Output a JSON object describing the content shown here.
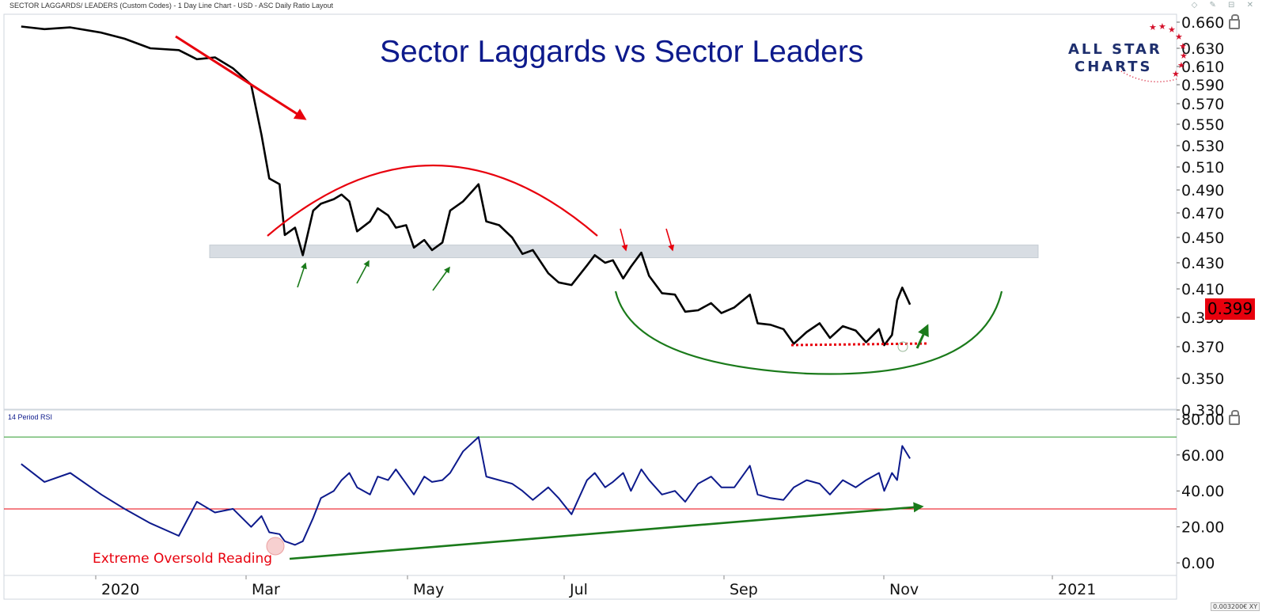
{
  "header": {
    "text": "SECTOR LAGGARDS/ LEADERS (Custom Codes) - 1 Day Line Chart - USD - ASC Daily Ratio Layout",
    "window_controls": "◇ ✎ ⊟ ✕"
  },
  "logo": {
    "line1": "ALL STAR",
    "line2": "CHARTS"
  },
  "price_tag": {
    "value": "0.399",
    "color": "#e8000d"
  },
  "corner_tag": "0.003200€ XY",
  "colors": {
    "price_line": "#000000",
    "rsi_line": "#0d1a8c",
    "title": "#0d1a8c",
    "red": "#e8000d",
    "green": "#1a7a1a",
    "band": "#d8dde3",
    "grid_border": "#cfd6dc"
  },
  "chart_data": [
    {
      "type": "line",
      "title": "Sector Laggards vs Sector Leaders",
      "y_axis_side": "right",
      "yticks": [
        "0.660",
        "0.630",
        "0.610",
        "0.590",
        "0.570",
        "0.550",
        "0.530",
        "0.510",
        "0.490",
        "0.470",
        "0.450",
        "0.430",
        "0.410",
        "0.390",
        "0.370",
        "0.350",
        "0.330"
      ],
      "x_tick_labels": [
        "2020",
        "Mar",
        "May",
        "Jul",
        "Sep",
        "Nov",
        "2021"
      ],
      "last_value": 0.399,
      "support_band": [
        0.434,
        0.444
      ],
      "series": [
        {
          "color": "#000000",
          "x": [
            "2019-12-01",
            "2019-12-10",
            "2019-12-20",
            "2020-01-01",
            "2020-01-10",
            "2020-01-20",
            "2020-01-31",
            "2020-02-07",
            "2020-02-14",
            "2020-02-21",
            "2020-02-28",
            "2020-03-03",
            "2020-03-06",
            "2020-03-10",
            "2020-03-12",
            "2020-03-16",
            "2020-03-19",
            "2020-03-23",
            "2020-03-26",
            "2020-03-31",
            "2020-04-03",
            "2020-04-06",
            "2020-04-09",
            "2020-04-14",
            "2020-04-17",
            "2020-04-21",
            "2020-04-24",
            "2020-04-28",
            "2020-05-01",
            "2020-05-05",
            "2020-05-08",
            "2020-05-12",
            "2020-05-15",
            "2020-05-20",
            "2020-05-26",
            "2020-05-29",
            "2020-06-03",
            "2020-06-08",
            "2020-06-12",
            "2020-06-16",
            "2020-06-22",
            "2020-06-26",
            "2020-07-01",
            "2020-07-07",
            "2020-07-10",
            "2020-07-14",
            "2020-07-17",
            "2020-07-21",
            "2020-07-24",
            "2020-07-28",
            "2020-07-31",
            "2020-08-05",
            "2020-08-10",
            "2020-08-14",
            "2020-08-19",
            "2020-08-24",
            "2020-08-28",
            "2020-09-02",
            "2020-09-08",
            "2020-09-11",
            "2020-09-16",
            "2020-09-21",
            "2020-09-25",
            "2020-09-30",
            "2020-10-05",
            "2020-10-09",
            "2020-10-14",
            "2020-10-19",
            "2020-10-23",
            "2020-10-28",
            "2020-10-30",
            "2020-11-02",
            "2020-11-04",
            "2020-11-06",
            "2020-11-09"
          ],
          "y": [
            0.655,
            0.652,
            0.654,
            0.648,
            0.641,
            0.63,
            0.628,
            0.618,
            0.62,
            0.608,
            0.59,
            0.54,
            0.5,
            0.495,
            0.452,
            0.458,
            0.436,
            0.472,
            0.478,
            0.482,
            0.486,
            0.48,
            0.455,
            0.463,
            0.474,
            0.468,
            0.458,
            0.46,
            0.442,
            0.448,
            0.44,
            0.446,
            0.472,
            0.48,
            0.495,
            0.463,
            0.46,
            0.45,
            0.437,
            0.44,
            0.422,
            0.415,
            0.413,
            0.428,
            0.436,
            0.43,
            0.432,
            0.418,
            0.427,
            0.438,
            0.42,
            0.407,
            0.406,
            0.394,
            0.395,
            0.4,
            0.393,
            0.397,
            0.406,
            0.386,
            0.385,
            0.382,
            0.372,
            0.38,
            0.386,
            0.376,
            0.384,
            0.381,
            0.373,
            0.382,
            0.371,
            0.378,
            0.402,
            0.411,
            0.399
          ]
        }
      ],
      "annotations": [
        {
          "type": "arrow",
          "color": "red",
          "label": "",
          "desc": "downtrend arrow"
        },
        {
          "type": "arc",
          "color": "red",
          "desc": "topping arc"
        },
        {
          "type": "arc",
          "color": "green",
          "desc": "basing arc"
        },
        {
          "type": "dotted-line",
          "color": "red",
          "desc": "support at lows"
        }
      ]
    },
    {
      "type": "line",
      "title": "14 Period RSI",
      "y_axis_side": "right",
      "yticks": [
        "80.00",
        "60.00",
        "40.00",
        "20.00",
        "0.00"
      ],
      "ylim": [
        -7,
        85
      ],
      "overbought": 70,
      "oversold": 30,
      "series": [
        {
          "color": "#0d1a8c",
          "x": [
            "2019-12-01",
            "2019-12-10",
            "2019-12-20",
            "2020-01-01",
            "2020-01-10",
            "2020-01-20",
            "2020-01-31",
            "2020-02-07",
            "2020-02-14",
            "2020-02-21",
            "2020-02-28",
            "2020-03-03",
            "2020-03-06",
            "2020-03-10",
            "2020-03-12",
            "2020-03-16",
            "2020-03-19",
            "2020-03-23",
            "2020-03-26",
            "2020-03-31",
            "2020-04-03",
            "2020-04-06",
            "2020-04-09",
            "2020-04-14",
            "2020-04-17",
            "2020-04-21",
            "2020-04-24",
            "2020-04-28",
            "2020-05-01",
            "2020-05-05",
            "2020-05-08",
            "2020-05-12",
            "2020-05-15",
            "2020-05-20",
            "2020-05-26",
            "2020-05-29",
            "2020-06-03",
            "2020-06-08",
            "2020-06-12",
            "2020-06-16",
            "2020-06-22",
            "2020-06-26",
            "2020-07-01",
            "2020-07-07",
            "2020-07-10",
            "2020-07-14",
            "2020-07-17",
            "2020-07-21",
            "2020-07-24",
            "2020-07-28",
            "2020-07-31",
            "2020-08-05",
            "2020-08-10",
            "2020-08-14",
            "2020-08-19",
            "2020-08-24",
            "2020-08-28",
            "2020-09-02",
            "2020-09-08",
            "2020-09-11",
            "2020-09-16",
            "2020-09-21",
            "2020-09-25",
            "2020-09-30",
            "2020-10-05",
            "2020-10-09",
            "2020-10-14",
            "2020-10-19",
            "2020-10-23",
            "2020-10-28",
            "2020-10-30",
            "2020-11-02",
            "2020-11-04",
            "2020-11-06",
            "2020-11-09"
          ],
          "y": [
            55,
            45,
            50,
            38,
            30,
            22,
            15,
            34,
            28,
            30,
            20,
            26,
            17,
            16,
            12,
            10,
            12,
            25,
            36,
            40,
            46,
            50,
            42,
            38,
            48,
            46,
            52,
            44,
            38,
            48,
            45,
            46,
            50,
            62,
            70,
            48,
            46,
            44,
            40,
            35,
            42,
            36,
            27,
            46,
            50,
            42,
            45,
            50,
            40,
            52,
            46,
            38,
            40,
            34,
            44,
            48,
            42,
            42,
            54,
            38,
            36,
            35,
            42,
            46,
            44,
            38,
            46,
            42,
            46,
            50,
            40,
            50,
            46,
            65,
            58
          ]
        }
      ],
      "annotation_label": "Extreme Oversold Reading"
    }
  ]
}
